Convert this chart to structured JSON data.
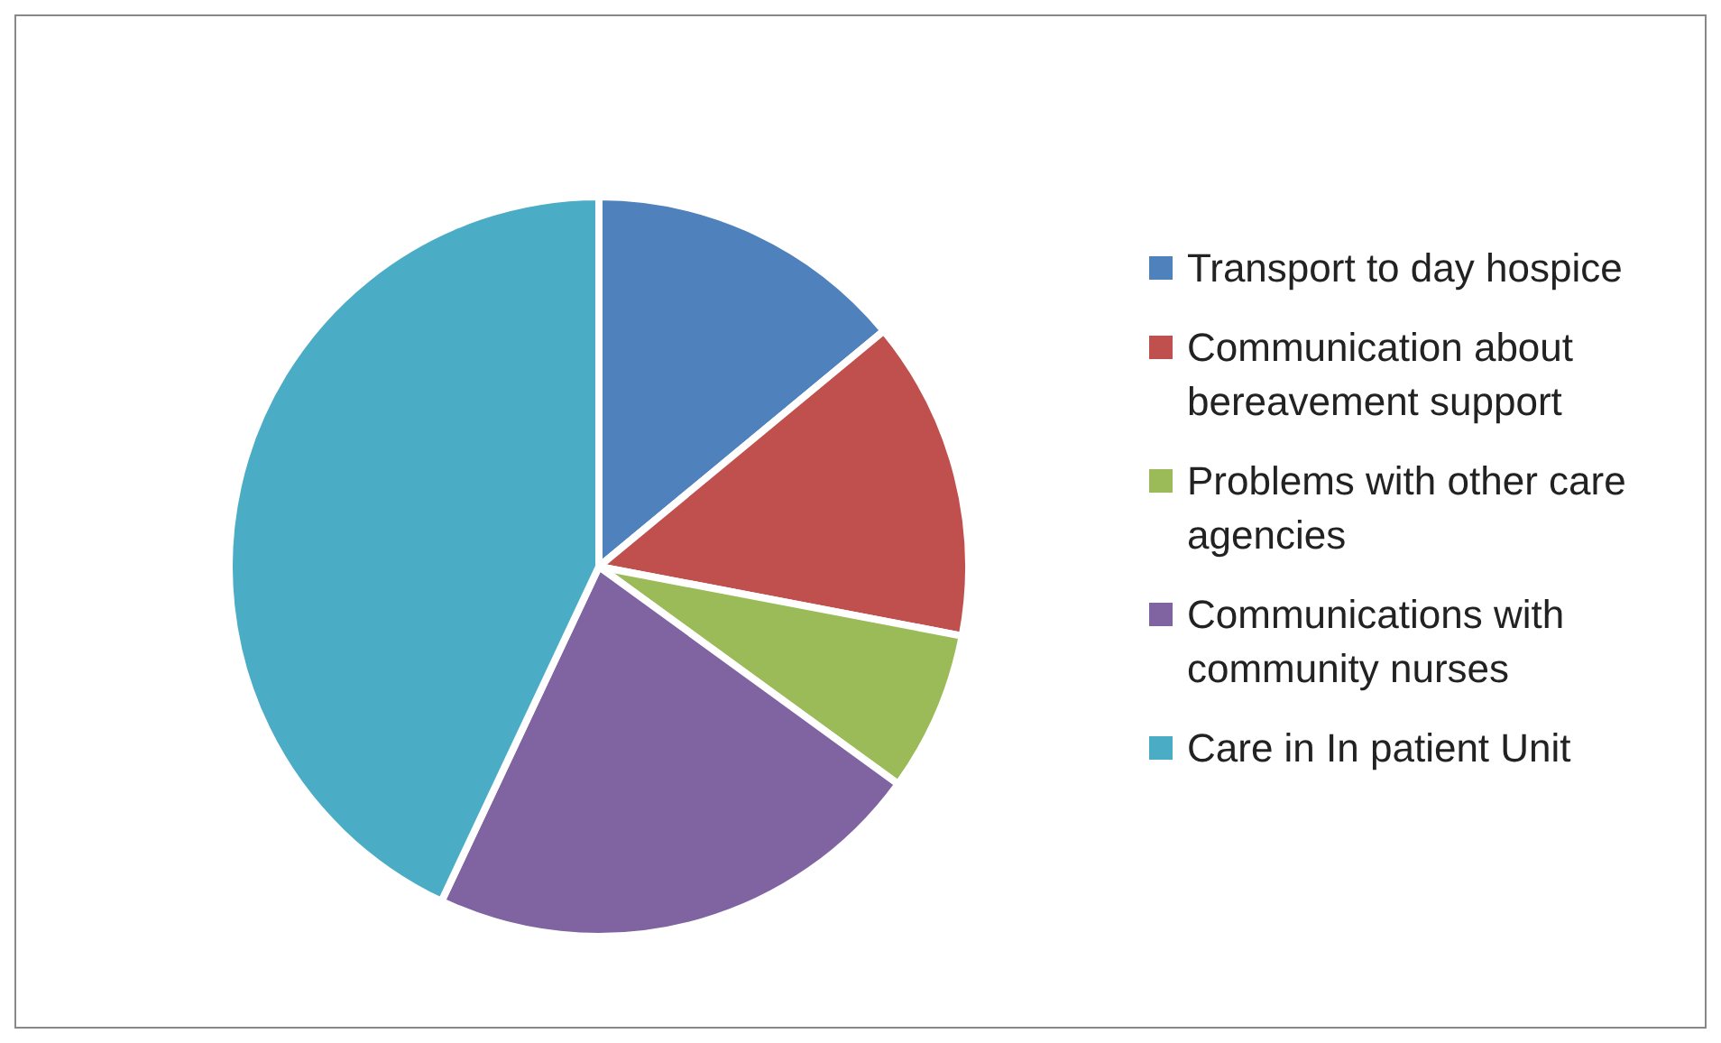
{
  "chart_data": {
    "type": "pie",
    "categories": [
      "Transport to day hospice",
      "Communication about bereavement support",
      "Problems with other care agencies",
      "Communications with community nurses",
      "Care in In patient Unit"
    ],
    "values": [
      14,
      14,
      7,
      22,
      43
    ],
    "colors": [
      "#4f81bd",
      "#c0504d",
      "#9bbb59",
      "#8064a2",
      "#4bacc6"
    ],
    "legend": "right"
  }
}
